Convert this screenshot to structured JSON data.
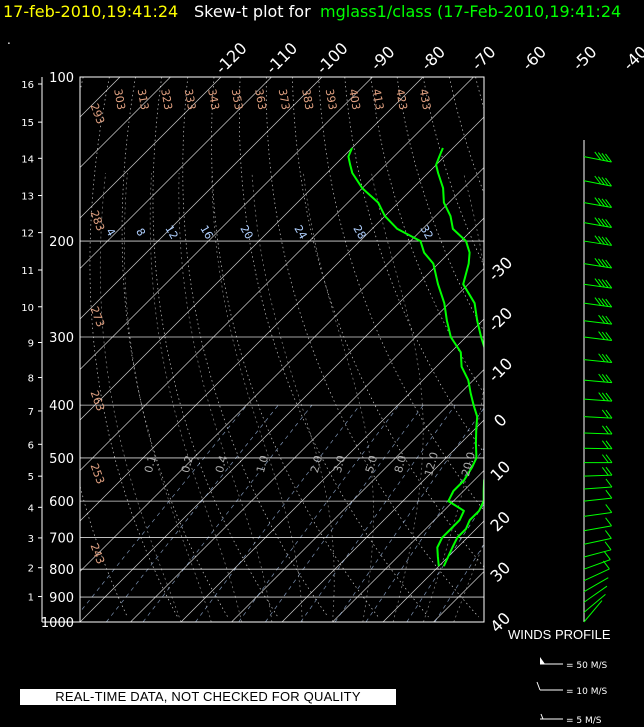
{
  "header": {
    "timestamp": "17-feb-2010,19:41:24",
    "mid_text": "Skew-t plot for",
    "source_text": "mglass1/class (17-Feb-2010,19:41:24"
  },
  "disclaimer": "REAL-TIME DATA, NOT CHECKED FOR QUALITY",
  "winds": {
    "title": "WINDS PROFILE",
    "legend": [
      {
        "label": "= 50 M/S",
        "speed": 50
      },
      {
        "label": "= 10 M/S",
        "speed": 10
      },
      {
        "label": "= 5 M/S",
        "speed": 5
      }
    ]
  },
  "colors": {
    "background": "#000000",
    "temperature": "#00ff00",
    "dewpoint": "#00ff00",
    "isotherm": "#ffffff",
    "isobar": "#ffffff",
    "dry_adiabat": "#ffffff",
    "moist_adiabat": "#aaaaaa",
    "mixing_ratio": "#b0d0ff",
    "theta_label": "#e0a080"
  },
  "chart_data": {
    "type": "line",
    "title": "Skew-t plot",
    "pressure_levels": [
      100,
      200,
      300,
      400,
      500,
      600,
      700,
      800,
      900,
      1000
    ],
    "height_km_ticks": [
      1,
      2,
      3,
      4,
      5,
      6,
      7,
      8,
      9,
      10,
      11,
      12,
      13,
      14,
      15,
      16
    ],
    "isotherm_top_labels": [
      "-120",
      "-110",
      "-100",
      "-90",
      "-80",
      "-70",
      "-60",
      "-50",
      "-40"
    ],
    "isotherm_right_labels": [
      "-30",
      "-20",
      "-10",
      "0",
      "10",
      "20",
      "30",
      "40"
    ],
    "theta_labels_top": [
      "303",
      "313",
      "323",
      "333",
      "343",
      "353",
      "363",
      "373",
      "383",
      "393",
      "403",
      "413",
      "423",
      "433"
    ],
    "theta_labels_left": [
      "293",
      "283",
      "273",
      "263",
      "253",
      "243"
    ],
    "mixing_ratio_labels": [
      "4",
      "8",
      "12",
      "16",
      "20",
      "24",
      "28",
      "32"
    ],
    "moist_labels": [
      "0.1",
      "0.2",
      "0.4",
      "1.0",
      "2.0",
      "3.0",
      "5.0",
      "8.0",
      "12.0",
      "20.0"
    ],
    "ylim": [
      1000,
      100
    ],
    "xlim": [
      -40,
      40
    ],
    "series": [
      {
        "name": "temperature",
        "points": [
          [
            790,
            21
          ],
          [
            760,
            20
          ],
          [
            730,
            19
          ],
          [
            700,
            18
          ],
          [
            675,
            18
          ],
          [
            650,
            17
          ],
          [
            625,
            17
          ],
          [
            600,
            16
          ],
          [
            575,
            14
          ],
          [
            550,
            12
          ],
          [
            520,
            10
          ],
          [
            500,
            8
          ],
          [
            470,
            6
          ],
          [
            440,
            3
          ],
          [
            420,
            1
          ],
          [
            400,
            -1
          ],
          [
            380,
            -3
          ],
          [
            360,
            -6
          ],
          [
            340,
            -10
          ],
          [
            320,
            -13
          ],
          [
            300,
            -17
          ],
          [
            280,
            -21
          ],
          [
            260,
            -25
          ],
          [
            240,
            -31
          ],
          [
            220,
            -34
          ],
          [
            210,
            -36
          ],
          [
            200,
            -39
          ],
          [
            190,
            -44
          ],
          [
            180,
            -47
          ],
          [
            170,
            -51
          ],
          [
            160,
            -54
          ],
          [
            150,
            -58
          ],
          [
            145,
            -60
          ],
          [
            140,
            -61
          ],
          [
            135,
            -62
          ]
        ]
      },
      {
        "name": "dewpoint",
        "points": [
          [
            790,
            20
          ],
          [
            760,
            18
          ],
          [
            730,
            16
          ],
          [
            700,
            15
          ],
          [
            675,
            15
          ],
          [
            650,
            15
          ],
          [
            625,
            14
          ],
          [
            600,
            9
          ],
          [
            575,
            8
          ],
          [
            550,
            8
          ],
          [
            520,
            7
          ],
          [
            500,
            6
          ],
          [
            470,
            3
          ],
          [
            440,
            0
          ],
          [
            420,
            -2
          ],
          [
            400,
            -5
          ],
          [
            380,
            -8
          ],
          [
            360,
            -11
          ],
          [
            340,
            -15
          ],
          [
            320,
            -18
          ],
          [
            300,
            -23
          ],
          [
            280,
            -27
          ],
          [
            260,
            -31
          ],
          [
            240,
            -36
          ],
          [
            220,
            -41
          ],
          [
            210,
            -45
          ],
          [
            200,
            -48
          ],
          [
            190,
            -55
          ],
          [
            180,
            -60
          ],
          [
            170,
            -64
          ],
          [
            160,
            -70
          ],
          [
            150,
            -75
          ],
          [
            145,
            -77
          ],
          [
            140,
            -79
          ],
          [
            135,
            -80
          ]
        ]
      }
    ],
    "wind_profile": [
      [
        1000,
        5,
        220
      ],
      [
        960,
        8,
        230
      ],
      [
        920,
        7,
        235
      ],
      [
        880,
        9,
        240
      ],
      [
        840,
        10,
        245
      ],
      [
        800,
        12,
        250
      ],
      [
        760,
        13,
        255
      ],
      [
        720,
        14,
        258
      ],
      [
        680,
        15,
        260
      ],
      [
        640,
        16,
        262
      ],
      [
        600,
        18,
        264
      ],
      [
        570,
        19,
        266
      ],
      [
        540,
        20,
        268
      ],
      [
        510,
        22,
        270
      ],
      [
        480,
        24,
        271
      ],
      [
        450,
        26,
        272
      ],
      [
        420,
        28,
        273
      ],
      [
        390,
        30,
        274
      ],
      [
        360,
        32,
        275
      ],
      [
        330,
        34,
        276
      ],
      [
        300,
        36,
        277
      ],
      [
        280,
        38,
        277
      ],
      [
        260,
        40,
        278
      ],
      [
        240,
        42,
        278
      ],
      [
        220,
        44,
        279
      ],
      [
        200,
        46,
        279
      ],
      [
        185,
        45,
        280
      ],
      [
        170,
        44,
        280
      ],
      [
        155,
        42,
        281
      ],
      [
        140,
        40,
        281
      ]
    ]
  }
}
